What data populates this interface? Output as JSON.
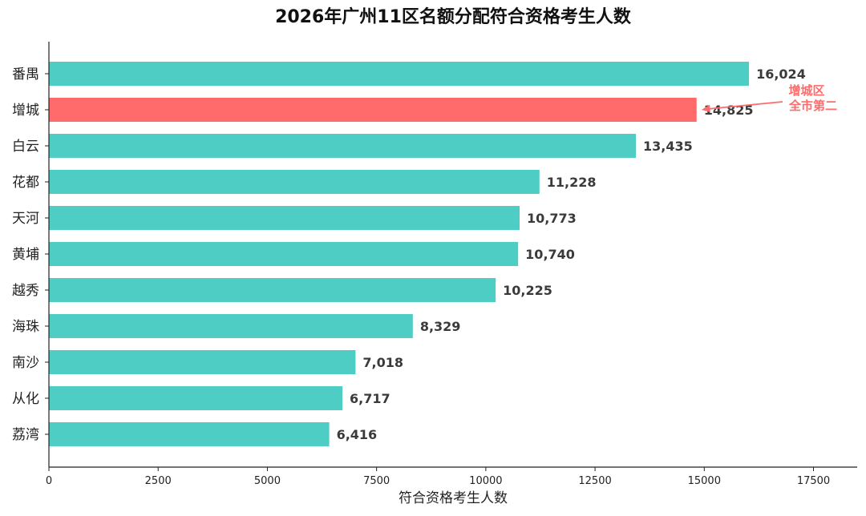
{
  "chart_data": {
    "type": "bar",
    "orientation": "horizontal",
    "title": "2026年广州11区名额分配符合资格考生人数",
    "xlabel": "符合资格考生人数",
    "ylabel": "",
    "xlim": [
      0,
      18500
    ],
    "xticks": [
      0,
      2500,
      5000,
      7500,
      10000,
      12500,
      15000,
      17500
    ],
    "xtick_labels": [
      "0",
      "2500",
      "5000",
      "7500",
      "10000",
      "12500",
      "15000",
      "17500"
    ],
    "categories": [
      "番禺",
      "增城",
      "白云",
      "花都",
      "天河",
      "黄埔",
      "越秀",
      "海珠",
      "南沙",
      "从化",
      "荔湾"
    ],
    "values": [
      16024,
      14825,
      13435,
      11228,
      10773,
      10740,
      10225,
      8329,
      7018,
      6717,
      6416
    ],
    "value_labels": [
      "16,024",
      "14,825",
      "13,435",
      "11,228",
      "10,773",
      "10,740",
      "10,225",
      "8,329",
      "7,018",
      "6,717",
      "6,416"
    ],
    "highlight_index": 1,
    "colors": {
      "default": "#4ECDC4",
      "highlight": "#FF6B6B",
      "annotation": "#FF6B6B"
    },
    "annotation": {
      "lines": [
        "增城区",
        "全市第二"
      ],
      "target_category": "增城"
    },
    "grid": false,
    "legend": "none"
  }
}
